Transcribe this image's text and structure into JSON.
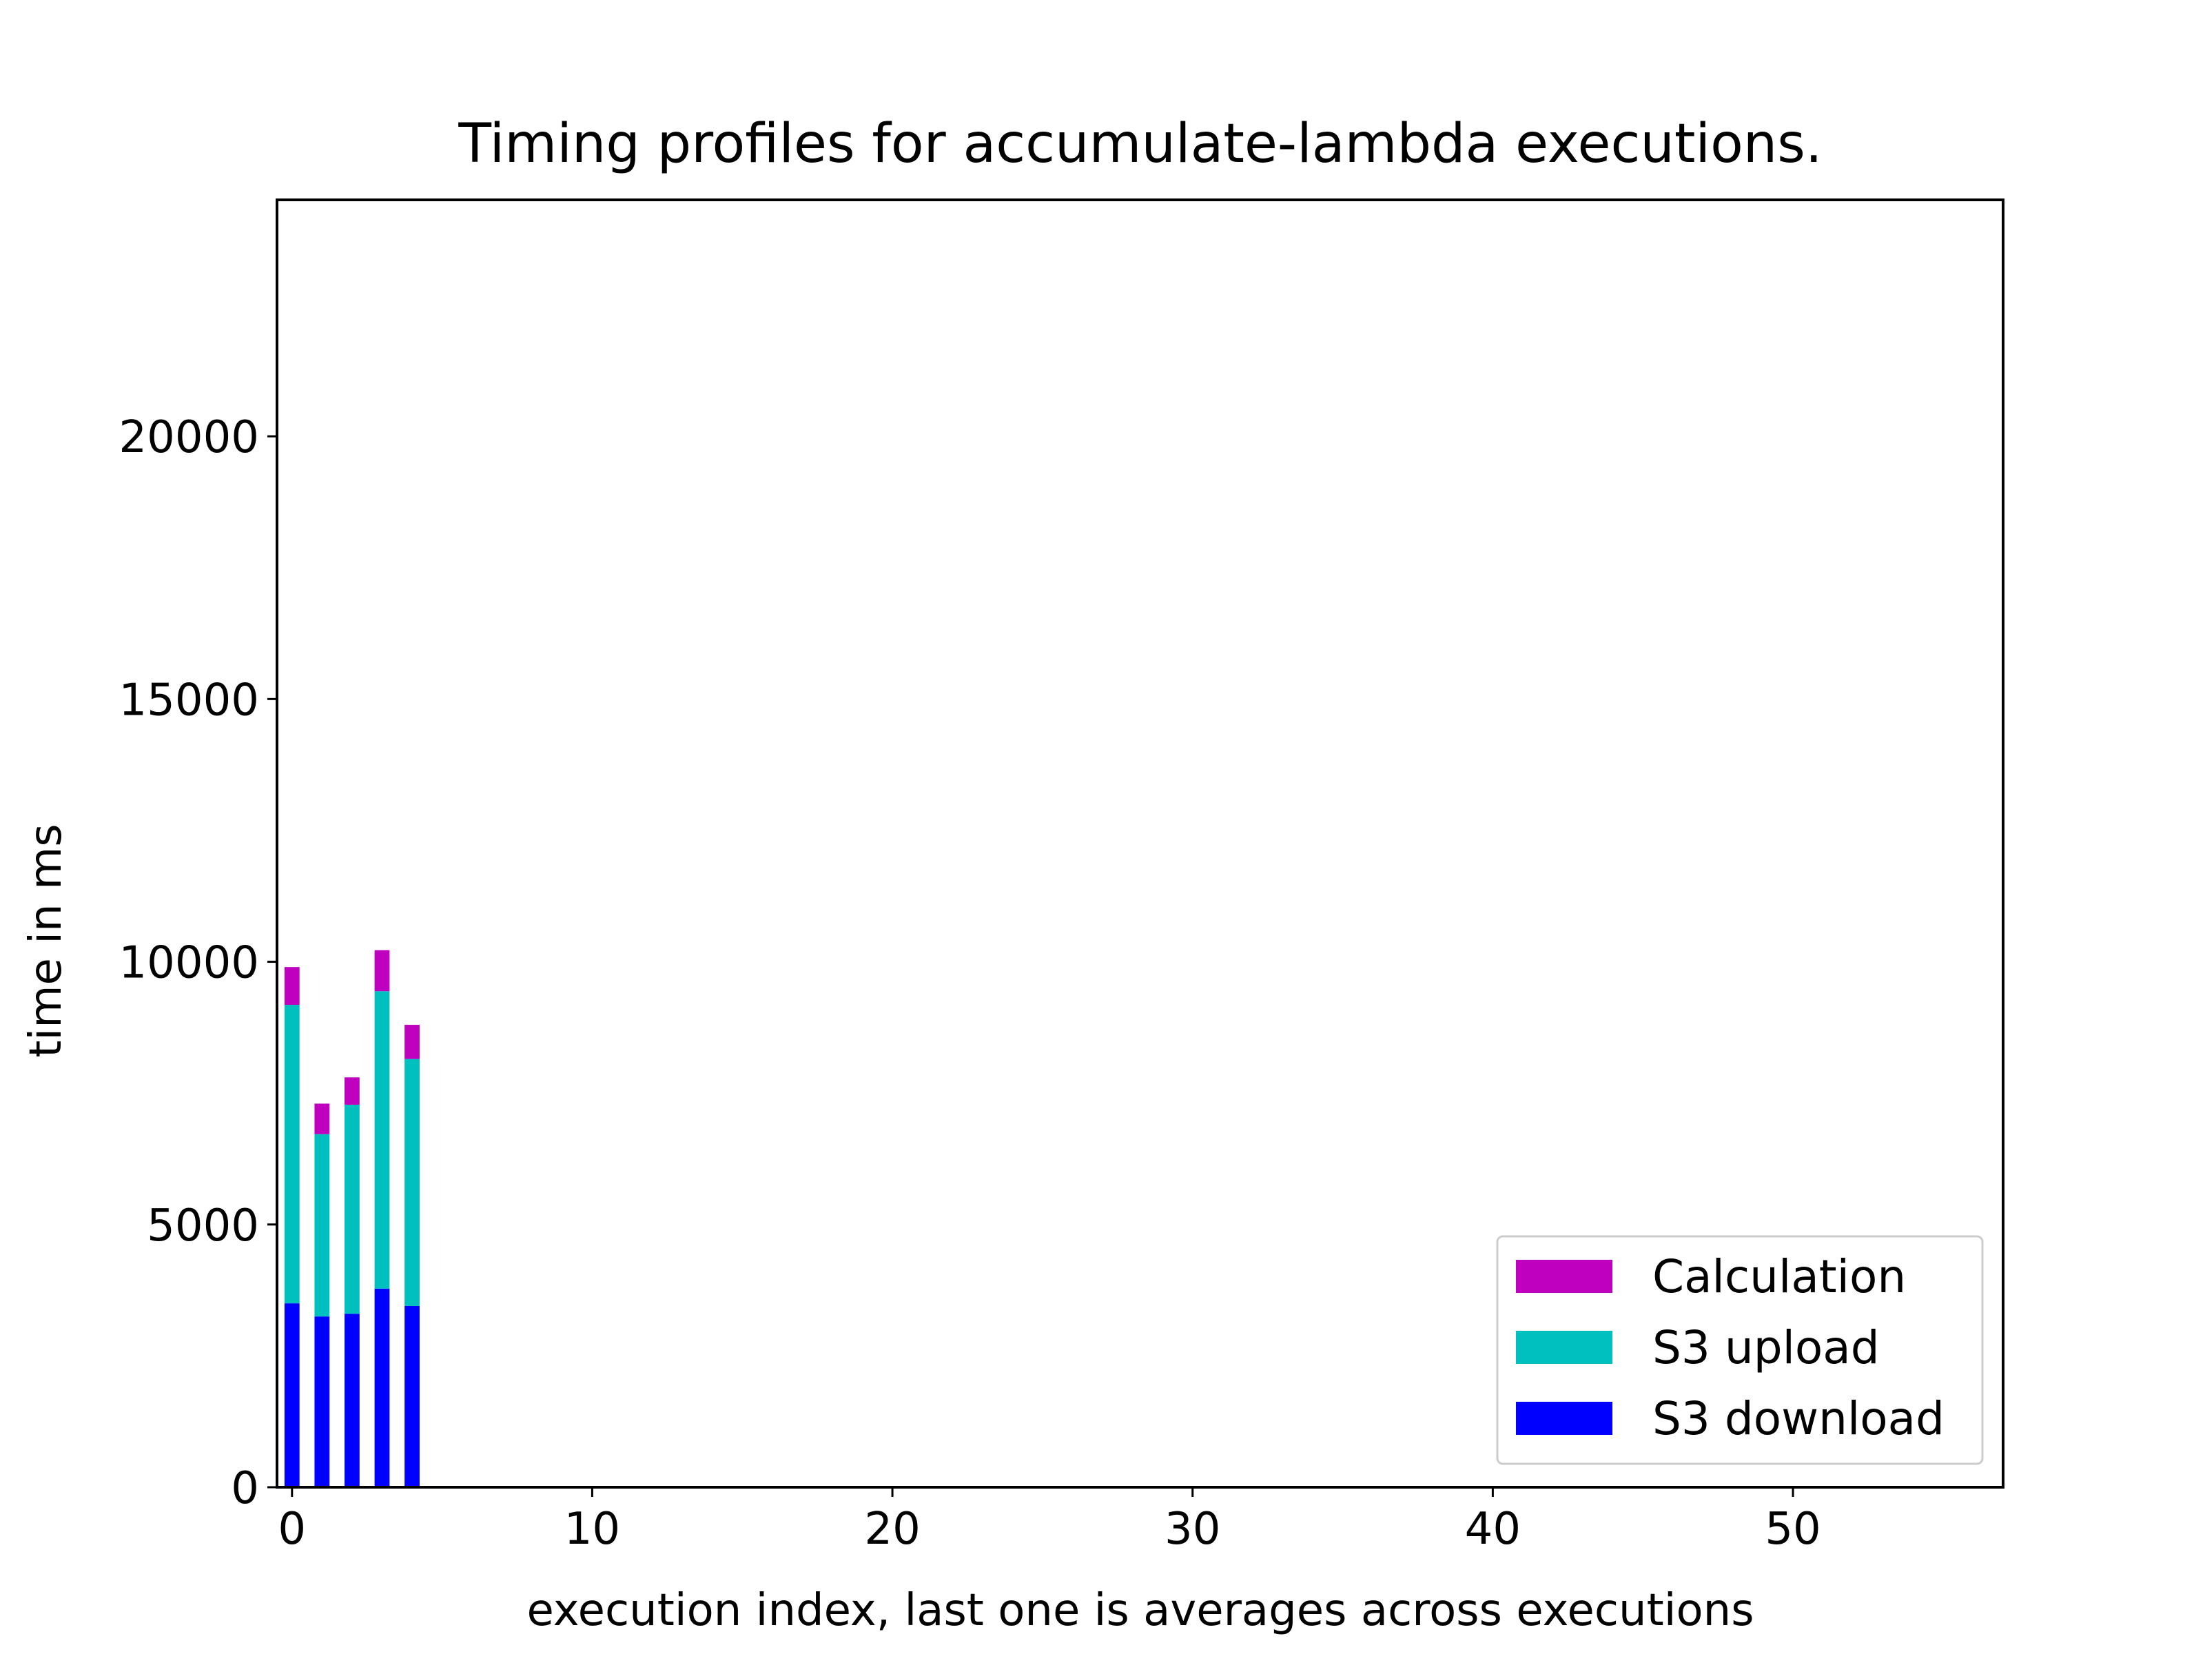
{
  "chart_data": {
    "type": "bar",
    "stacked": true,
    "title": "Timing profiles for accumulate-lambda executions.",
    "xlabel": "execution index, last one is averages across executions",
    "ylabel": "time in ms",
    "x": [
      0,
      1,
      2,
      3,
      4
    ],
    "xlim": [
      -0.5,
      57
    ],
    "ylim": [
      0,
      24500
    ],
    "xticks": [
      0,
      10,
      20,
      30,
      40,
      50
    ],
    "xtick_labels": [
      "0",
      "10",
      "20",
      "30",
      "40",
      "50"
    ],
    "yticks": [
      0,
      5000,
      10000,
      15000,
      20000
    ],
    "ytick_labels": [
      "0",
      "5000",
      "10000",
      "15000",
      "20000"
    ],
    "grid": false,
    "legend_position": "lower-right",
    "bar_width": 0.5,
    "series": [
      {
        "name": "S3 download",
        "color": "#0000ff",
        "values": [
          3500,
          3250,
          3300,
          3780,
          3450
        ]
      },
      {
        "name": "S3 upload",
        "color": "#00bfbf",
        "values": [
          5680,
          3470,
          3980,
          5660,
          4700
        ]
      },
      {
        "name": "Calculation",
        "color": "#bf00bf",
        "values": [
          720,
          580,
          520,
          780,
          650
        ]
      }
    ],
    "legend": [
      "Calculation",
      "S3 upload",
      "S3 download"
    ]
  }
}
